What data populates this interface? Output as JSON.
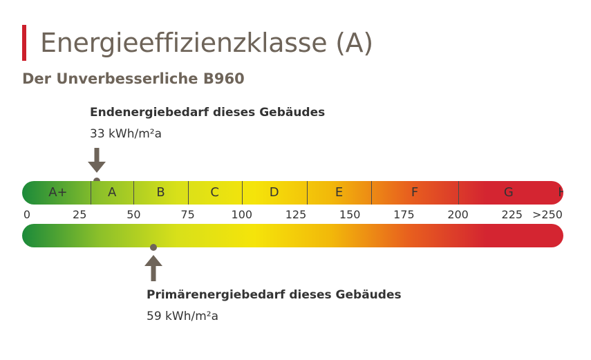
{
  "header": {
    "title": "Energieeffizienzklasse (A)",
    "subtitle": "Der Unverbesserliche B960"
  },
  "end_energy": {
    "title": "Endenergiebedarf dieses Gebäudes",
    "value_text": "33 kWh/m²a",
    "value": 33
  },
  "primary_energy": {
    "title": "Primärenergiebedarf dieses Gebäudes",
    "value_text": "59 kWh/m²a",
    "value": 59
  },
  "scale": {
    "min": 0,
    "max": 250,
    "ticks": [
      "0",
      "25",
      "50",
      "75",
      "100",
      "125",
      "150",
      "175",
      "200",
      "225",
      ">250"
    ]
  },
  "classes": [
    {
      "label": "A+",
      "from": 0,
      "to": 30
    },
    {
      "label": "A",
      "from": 30,
      "to": 50
    },
    {
      "label": "B",
      "from": 50,
      "to": 75
    },
    {
      "label": "C",
      "from": 75,
      "to": 100
    },
    {
      "label": "D",
      "from": 100,
      "to": 130
    },
    {
      "label": "E",
      "from": 130,
      "to": 160
    },
    {
      "label": "F",
      "from": 160,
      "to": 200
    },
    {
      "label": "G",
      "from": 200,
      "to": 250
    },
    {
      "label": "H",
      "from": 250,
      "to": 260
    }
  ],
  "colors": {
    "accent": "#cc1f2b",
    "text_heading": "#6e6459",
    "marker": "#6e6459",
    "gradient": [
      "#1b8a3a",
      "#8cc02a",
      "#d8e01a",
      "#f5e40a",
      "#f2b80a",
      "#e8601e",
      "#d42531",
      "#d42531"
    ]
  }
}
